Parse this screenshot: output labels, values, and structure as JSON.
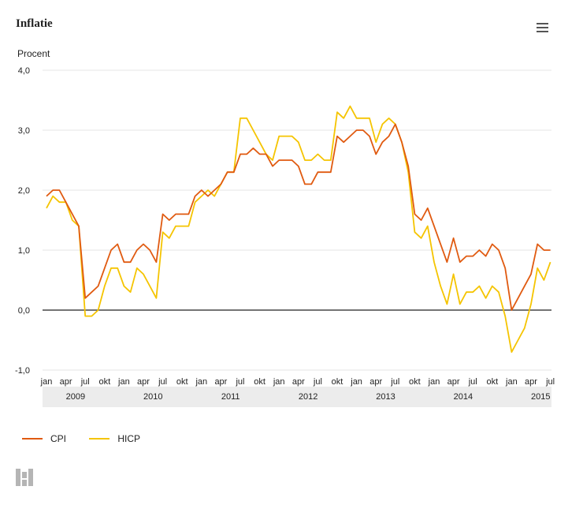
{
  "header": {
    "title": "Inflatie",
    "menu_icon": "hamburger-menu-icon"
  },
  "chart_data": {
    "type": "line",
    "ylabel": "Procent",
    "ylim": [
      -1.0,
      4.0
    ],
    "yticks": [
      "-1,0",
      "0,0",
      "1,0",
      "2,0",
      "3,0",
      "4,0"
    ],
    "ytick_values": [
      -1,
      0,
      1,
      2,
      3,
      4
    ],
    "month_tick_labels": [
      "jan",
      "apr",
      "jul",
      "okt",
      "jan",
      "apr",
      "jul",
      "okt",
      "jan",
      "apr",
      "jul",
      "okt",
      "jan",
      "apr",
      "jul",
      "okt",
      "jan",
      "apr",
      "jul",
      "okt",
      "jan",
      "apr",
      "jul",
      "okt",
      "jan",
      "apr",
      "jul"
    ],
    "year_labels": [
      "2009",
      "2010",
      "2011",
      "2012",
      "2013",
      "2014",
      "2015"
    ],
    "x_start": "2009-01",
    "x_end": "2015-07",
    "grid": true,
    "legend_position": "bottom-left",
    "series": [
      {
        "name": "CPI",
        "color": "#e05a10",
        "values": [
          1.9,
          2.0,
          2.0,
          1.8,
          1.6,
          1.4,
          0.2,
          0.3,
          0.4,
          0.7,
          1.0,
          1.1,
          0.8,
          0.8,
          1.0,
          1.1,
          1.0,
          0.8,
          1.6,
          1.5,
          1.6,
          1.6,
          1.6,
          1.9,
          2.0,
          1.9,
          2.0,
          2.1,
          2.3,
          2.3,
          2.6,
          2.6,
          2.7,
          2.6,
          2.6,
          2.4,
          2.5,
          2.5,
          2.5,
          2.4,
          2.1,
          2.1,
          2.3,
          2.3,
          2.3,
          2.9,
          2.8,
          2.9,
          3.0,
          3.0,
          2.9,
          2.6,
          2.8,
          2.9,
          3.1,
          2.8,
          2.4,
          1.6,
          1.5,
          1.7,
          1.4,
          1.1,
          0.8,
          1.2,
          0.8,
          0.9,
          0.9,
          1.0,
          0.9,
          1.1,
          1.0,
          0.7,
          0.0,
          0.2,
          0.4,
          0.6,
          1.1,
          1.0,
          1.0
        ]
      },
      {
        "name": "HICP",
        "color": "#f5c400",
        "values": [
          1.7,
          1.9,
          1.8,
          1.8,
          1.5,
          1.4,
          -0.1,
          -0.1,
          0.0,
          0.4,
          0.7,
          0.7,
          0.4,
          0.3,
          0.7,
          0.6,
          0.4,
          0.2,
          1.3,
          1.2,
          1.4,
          1.4,
          1.4,
          1.8,
          1.9,
          2.0,
          1.9,
          2.1,
          2.3,
          2.3,
          3.2,
          3.2,
          3.0,
          2.8,
          2.6,
          2.5,
          2.9,
          2.9,
          2.9,
          2.8,
          2.5,
          2.5,
          2.6,
          2.5,
          2.5,
          3.3,
          3.2,
          3.4,
          3.2,
          3.2,
          3.2,
          2.8,
          3.1,
          3.2,
          3.1,
          2.8,
          2.3,
          1.3,
          1.2,
          1.4,
          0.8,
          0.4,
          0.1,
          0.6,
          0.1,
          0.3,
          0.3,
          0.4,
          0.2,
          0.4,
          0.3,
          -0.1,
          -0.7,
          -0.5,
          -0.3,
          0.1,
          0.7,
          0.5,
          0.8
        ]
      }
    ]
  },
  "legend": {
    "items": [
      "CPI",
      "HICP"
    ]
  },
  "footer": {
    "logo": "cbs-logo"
  }
}
